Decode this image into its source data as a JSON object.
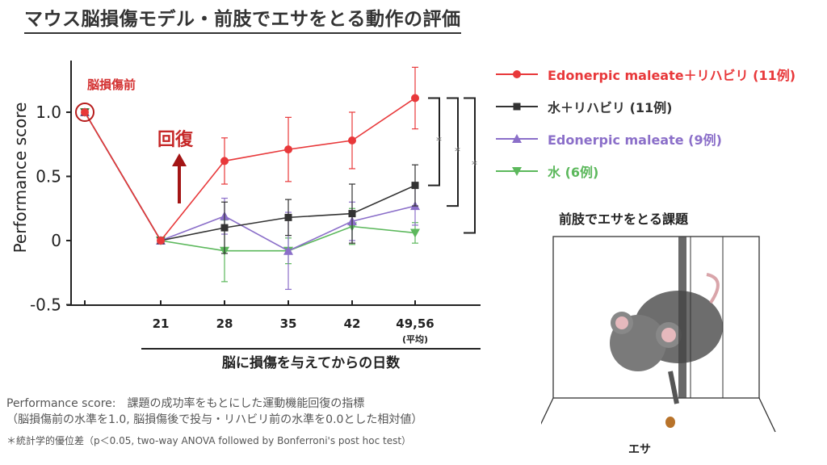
{
  "slide": {
    "title": "マウス脳損傷モデル・前肢でエサをとる動作の評価",
    "task_title": "前肢でエサをとる課題",
    "food_label": "エサ",
    "notes": {
      "line1": "Performance score:　課題の成功率をもとにした運動機能回復の指標",
      "line2": "（脳損傷前の水準を1.0, 脳損傷後で投与・リハビリ前の水準を0.0とした相対値）",
      "line3": "＊統計学的優位差（p＜0.05, two-way ANOVA followed by Bonferroni's post hoc test）"
    }
  },
  "chart_data": {
    "type": "line",
    "title": "",
    "xlabel": "脳に損傷を与えてからの日数",
    "ylabel": "Performance score",
    "categories": [
      "",
      "21",
      "28",
      "35",
      "42",
      "49,56"
    ],
    "x_sublabel": "(平均)",
    "yticks": [
      "1.0",
      "0.5",
      "0",
      "-0.5"
    ],
    "ytick_values": [
      1.0,
      0.5,
      0,
      -0.5
    ],
    "ylim": [
      -0.5,
      1.35
    ],
    "annotations": {
      "pre_injury": "脳損傷前",
      "recovery": "回復",
      "significance": "*"
    },
    "series": [
      {
        "name": "Edonerpic maleate＋リハビリ (11例)",
        "color": "#e8383a",
        "marker": "circle",
        "values": [
          1.0,
          0,
          0.62,
          0.71,
          0.78,
          1.11
        ],
        "errors": [
          0,
          0,
          0.18,
          0.25,
          0.22,
          0.24
        ]
      },
      {
        "name": "水＋リハビリ (11例)",
        "color": "#333333",
        "marker": "square",
        "values": [
          1.0,
          0,
          0.1,
          0.18,
          0.21,
          0.43
        ],
        "errors": [
          0,
          0,
          0.2,
          0.14,
          0.23,
          0.16
        ]
      },
      {
        "name": "Edonerpic maleate (9例)",
        "color": "#8b6fc9",
        "marker": "triangle-up",
        "values": [
          1.0,
          0,
          0.19,
          -0.08,
          0.15,
          0.27
        ],
        "errors": [
          0,
          0,
          0.14,
          0.3,
          0.15,
          0.15
        ]
      },
      {
        "name": "水 (6例)",
        "color": "#5cb85c",
        "marker": "triangle-down",
        "values": [
          1.0,
          0,
          -0.08,
          -0.08,
          0.11,
          0.06
        ],
        "errors": [
          0,
          0,
          0.24,
          0.1,
          0.14,
          0.08
        ]
      }
    ],
    "grid": false,
    "legend": "right"
  }
}
